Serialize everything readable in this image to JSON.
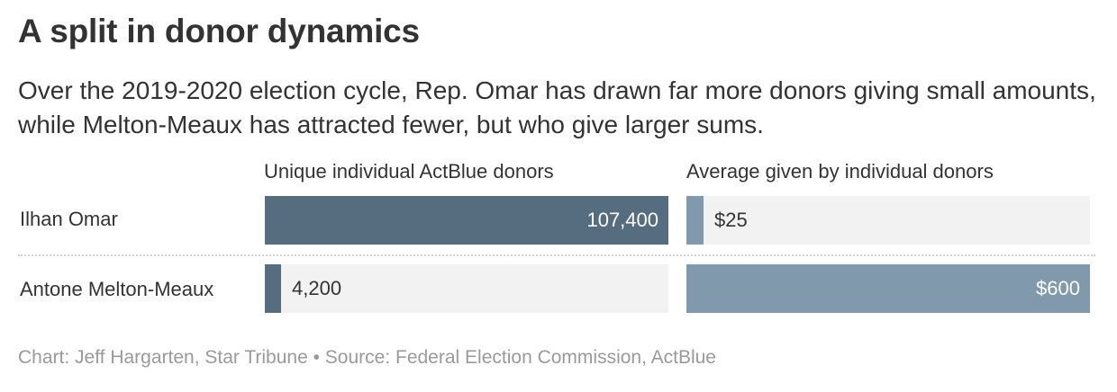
{
  "title": "A split in donor dynamics",
  "subtitle": "Over the 2019-2020 election cycle, Rep. Omar has drawn far more donors giving small amounts, while Melton-Meaux has attracted fewer, but who give larger sums.",
  "footer": "Chart: Jeff Hargarten, Star Tribune • Source: Federal Election Commission, ActBlue",
  "colors": {
    "donors_bar": "#566d80",
    "average_bar": "#8099ad",
    "track": "#f2f2f2"
  },
  "chart_data": [
    {
      "type": "bar",
      "title": "Unique individual ActBlue donors",
      "categories": [
        "Ilhan Omar",
        "Antone Melton-Meaux"
      ],
      "values": [
        107400,
        4200
      ],
      "value_labels": [
        "107,400",
        "4,200"
      ],
      "xlim": [
        0,
        107400
      ],
      "grid": false
    },
    {
      "type": "bar",
      "title": "Average given by individual donors",
      "categories": [
        "Ilhan Omar",
        "Antone Melton-Meaux"
      ],
      "values": [
        25,
        600
      ],
      "value_labels": [
        "$25",
        "$600"
      ],
      "xlim": [
        0,
        600
      ],
      "grid": false
    }
  ]
}
